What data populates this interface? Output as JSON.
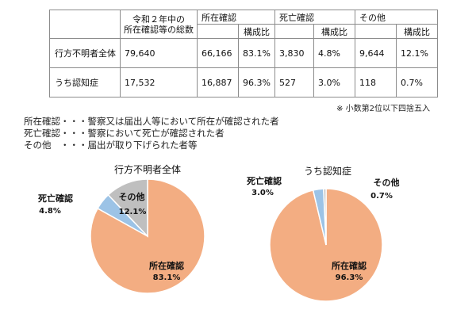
{
  "table": {
    "header": {
      "total_line1": "令和２年中の",
      "total_line2": "所在確認等の総数",
      "groups": [
        "所在確認",
        "死亡確認",
        "その他"
      ],
      "ratio_label": "構成比"
    },
    "rows": [
      {
        "label": "行方不明者全体",
        "total": "79,640",
        "confirmed": "66,166",
        "confirmed_ratio": "83.1%",
        "death": "3,830",
        "death_ratio": "4.8%",
        "other": "9,644",
        "other_ratio": "12.1%"
      },
      {
        "label": "うち認知症",
        "total": "17,532",
        "confirmed": "16,887",
        "confirmed_ratio": "96.3%",
        "death": "527",
        "death_ratio": "3.0%",
        "other": "118",
        "other_ratio": "0.7%"
      }
    ],
    "note": "※ 小数第2位以下四捨五入"
  },
  "legend_notes": [
    "所在確認・・・警察又は届出人等において所在が確認された者",
    "死亡確認・・・警察において死亡が確認された者",
    "その他　・・・届出が取り下げられた者等"
  ],
  "colors": {
    "confirmed": "#f3ad82",
    "death": "#9cc3e6",
    "other": "#bfbfbf",
    "stroke": "#ffffff"
  },
  "chart_data": [
    {
      "type": "pie",
      "title": "行方不明者全体",
      "categories": [
        "所在確認",
        "死亡確認",
        "その他"
      ],
      "values": [
        83.1,
        4.8,
        12.1
      ],
      "labels": [
        "83.1%",
        "4.8%",
        "12.1%"
      ]
    },
    {
      "type": "pie",
      "title": "うち認知症",
      "categories": [
        "所在確認",
        "死亡確認",
        "その他"
      ],
      "values": [
        96.3,
        3.0,
        0.7
      ],
      "labels": [
        "96.3%",
        "3.0%",
        "0.7%"
      ]
    }
  ]
}
